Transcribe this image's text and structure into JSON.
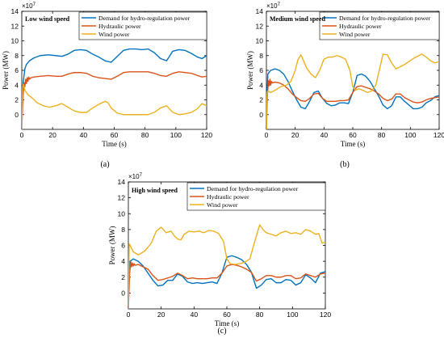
{
  "colors": {
    "demand": "#0072BD",
    "hydraulic": "#D95319",
    "wind": "#EDB120"
  },
  "chart_data": [
    {
      "type": "line",
      "panel_label": "(a)",
      "title": "Low wind speed",
      "xlabel": "Time (s)",
      "ylabel": "Power (MW)",
      "y_exponent": "×10",
      "y_exponent_power": "7",
      "xlim": [
        0,
        120
      ],
      "ylim": [
        -2,
        14
      ],
      "x_ticks": [
        "0",
        "20",
        "40",
        "60",
        "80",
        "100",
        "120"
      ],
      "y_ticks": [
        "0",
        "2",
        "4",
        "6",
        "8",
        "10",
        "12",
        "14"
      ],
      "legend_position": "top-right",
      "series": [
        {
          "name": "Demand for hydro-regulation power",
          "color_key": "demand",
          "x": [
            0,
            1,
            2,
            3,
            5,
            8,
            12,
            17,
            22,
            26,
            30,
            34,
            38,
            42,
            46,
            50,
            54,
            58,
            62,
            66,
            70,
            74,
            78,
            82,
            86,
            90,
            94,
            98,
            102,
            106,
            110,
            114,
            117,
            120
          ],
          "y": [
            0,
            4.5,
            6.2,
            6.8,
            7.3,
            7.7,
            8.0,
            8.1,
            8.0,
            7.9,
            8.2,
            8.7,
            8.8,
            8.7,
            8.2,
            7.8,
            7.3,
            7.1,
            7.9,
            8.7,
            8.9,
            8.9,
            8.8,
            8.9,
            8.4,
            7.6,
            7.3,
            8.6,
            8.8,
            8.7,
            8.3,
            7.8,
            7.6,
            8.0
          ]
        },
        {
          "name": "Hydraulic power",
          "color_key": "hydraulic",
          "x": [
            0,
            0.8,
            1.5,
            2,
            2.5,
            3,
            3.5,
            4,
            4.5,
            5,
            6,
            8,
            12,
            17,
            22,
            26,
            30,
            34,
            38,
            42,
            46,
            50,
            54,
            58,
            62,
            66,
            70,
            74,
            78,
            82,
            86,
            90,
            94,
            98,
            102,
            106,
            110,
            114,
            117,
            120
          ],
          "y": [
            -2,
            2.5,
            4.3,
            3.8,
            4.8,
            4.2,
            5.0,
            4.5,
            5.1,
            4.8,
            5.0,
            5.1,
            5.2,
            5.3,
            5.2,
            5.2,
            5.5,
            5.7,
            5.7,
            5.6,
            5.2,
            5.0,
            4.9,
            4.8,
            5.2,
            5.7,
            5.8,
            5.8,
            5.8,
            5.8,
            5.6,
            5.3,
            5.2,
            5.6,
            5.8,
            5.7,
            5.6,
            5.3,
            5.1,
            5.2
          ]
        },
        {
          "name": "Wind power",
          "color_key": "wind",
          "x": [
            0,
            0.5,
            1,
            2,
            4,
            7,
            10,
            14,
            18,
            22,
            26,
            30,
            34,
            38,
            42,
            46,
            50,
            54,
            56,
            58,
            62,
            66,
            70,
            74,
            78,
            82,
            86,
            90,
            94,
            98,
            102,
            106,
            110,
            114,
            117,
            120
          ],
          "y": [
            -2,
            3.8,
            4.1,
            3.3,
            2.7,
            2.2,
            1.6,
            1.2,
            1.0,
            1.2,
            1.5,
            1.0,
            0.5,
            0.3,
            0.3,
            0.9,
            1.4,
            1.8,
            1.6,
            0.9,
            0.2,
            0.0,
            0.0,
            0.0,
            0.0,
            0.0,
            0.3,
            0.9,
            1.2,
            0.3,
            0.0,
            0.1,
            0.3,
            0.8,
            1.5,
            1.2
          ]
        }
      ]
    },
    {
      "type": "line",
      "panel_label": "(b)",
      "title": "Medium wind speed",
      "xlabel": "Time (s)",
      "ylabel": "Power (MW)",
      "y_exponent": "×10",
      "y_exponent_power": "7",
      "xlim": [
        0,
        120
      ],
      "ylim": [
        -2,
        14
      ],
      "x_ticks": [
        "0",
        "20",
        "40",
        "60",
        "80",
        "100",
        "120"
      ],
      "y_ticks": [
        "0",
        "2",
        "4",
        "6",
        "8",
        "10",
        "12",
        "14"
      ],
      "legend_position": "top-right",
      "series": [
        {
          "name": "Demand for hydro-regulation power",
          "color_key": "demand",
          "x": [
            0,
            1,
            3,
            6,
            9,
            12,
            15,
            18,
            21,
            24,
            27,
            30,
            33,
            36,
            39,
            42,
            45,
            48,
            51,
            54,
            57,
            60,
            63,
            66,
            69,
            72,
            75,
            78,
            81,
            84,
            87,
            90,
            93,
            96,
            99,
            102,
            105,
            108,
            111,
            114,
            117,
            120
          ],
          "y": [
            0,
            5.5,
            6.0,
            6.2,
            6.0,
            5.5,
            4.5,
            3.2,
            2.0,
            1.0,
            0.8,
            1.8,
            3.0,
            3.2,
            2.2,
            1.5,
            1.2,
            1.3,
            1.6,
            1.6,
            1.5,
            3.0,
            5.3,
            5.5,
            5.2,
            4.5,
            3.5,
            2.5,
            1.3,
            0.8,
            1.2,
            2.4,
            2.4,
            1.8,
            1.3,
            0.8,
            0.8,
            1.0,
            1.6,
            1.9,
            2.4,
            2.6
          ]
        },
        {
          "name": "Hydraulic power",
          "color_key": "hydraulic",
          "x": [
            0,
            0.8,
            1.5,
            2,
            2.5,
            3,
            3.5,
            4,
            6,
            9,
            12,
            15,
            18,
            21,
            24,
            27,
            30,
            33,
            36,
            39,
            42,
            45,
            48,
            51,
            54,
            57,
            60,
            63,
            66,
            69,
            72,
            75,
            78,
            81,
            84,
            87,
            90,
            93,
            96,
            99,
            102,
            105,
            108,
            111,
            114,
            117,
            120
          ],
          "y": [
            -2,
            3.0,
            4.6,
            3.9,
            4.8,
            4.0,
            4.5,
            4.3,
            4.4,
            4.3,
            4.0,
            3.5,
            2.8,
            2.3,
            1.9,
            1.8,
            2.2,
            2.8,
            2.9,
            2.2,
            1.8,
            1.8,
            1.8,
            1.9,
            1.9,
            2.0,
            3.0,
            3.8,
            3.9,
            3.7,
            3.5,
            3.2,
            2.8,
            2.2,
            1.9,
            2.1,
            2.8,
            2.8,
            2.3,
            2.0,
            1.7,
            1.6,
            1.7,
            2.0,
            2.2,
            2.3,
            2.4
          ]
        },
        {
          "name": "Wind power",
          "color_key": "wind",
          "x": [
            0,
            0.5,
            1,
            3,
            6,
            10,
            14,
            17,
            20,
            22,
            24,
            26,
            28,
            31,
            34,
            37,
            40,
            43,
            46,
            49,
            52,
            55,
            58,
            60,
            62,
            64,
            67,
            70,
            73,
            76,
            79,
            81,
            84,
            87,
            90,
            93,
            96,
            99,
            102,
            105,
            108,
            111,
            114,
            117,
            120
          ],
          "y": [
            -2,
            3.0,
            3.2,
            3.0,
            3.3,
            3.8,
            4.0,
            4.5,
            6.0,
            7.5,
            8.1,
            7.2,
            6.3,
            5.5,
            5.0,
            6.0,
            7.5,
            7.8,
            7.8,
            8.0,
            7.8,
            7.5,
            6.0,
            3.8,
            3.3,
            3.5,
            3.3,
            3.0,
            3.2,
            4.0,
            6.5,
            8.2,
            8.1,
            7.0,
            6.2,
            6.5,
            6.8,
            7.2,
            7.6,
            7.9,
            8.2,
            7.8,
            7.3,
            7.0,
            7.2
          ]
        }
      ]
    },
    {
      "type": "line",
      "panel_label": "(c)",
      "title": "High wind speed",
      "xlabel": "Time (s)",
      "ylabel": "Power (MW)",
      "y_exponent": "×10",
      "y_exponent_power": "7",
      "xlim": [
        0,
        120
      ],
      "ylim": [
        -2,
        14
      ],
      "x_ticks": [
        "0",
        "20",
        "40",
        "60",
        "80",
        "100",
        "120"
      ],
      "y_ticks": [
        "0",
        "2",
        "4",
        "6",
        "8",
        "10",
        "12",
        "14"
      ],
      "legend_position": "top-right",
      "series": [
        {
          "name": "Demand for hydro-regulation power",
          "color_key": "demand",
          "x": [
            0,
            1,
            3,
            6,
            9,
            12,
            15,
            18,
            21,
            24,
            27,
            30,
            33,
            36,
            39,
            42,
            45,
            48,
            51,
            54,
            57,
            60,
            63,
            66,
            69,
            72,
            75,
            78,
            81,
            84,
            87,
            90,
            93,
            96,
            99,
            102,
            105,
            108,
            111,
            114,
            117,
            120
          ],
          "y": [
            0,
            4.0,
            4.3,
            4.0,
            3.4,
            2.5,
            1.6,
            0.9,
            1.0,
            1.6,
            1.6,
            2.4,
            2.1,
            1.4,
            1.2,
            1.3,
            1.2,
            1.3,
            1.4,
            1.2,
            2.5,
            4.5,
            4.7,
            4.5,
            4.2,
            3.6,
            2.6,
            0.6,
            1.0,
            1.7,
            1.8,
            1.3,
            1.3,
            1.7,
            1.6,
            1.0,
            1.3,
            2.3,
            1.9,
            1.3,
            2.5,
            2.7
          ]
        },
        {
          "name": "Hydraulic power",
          "color_key": "hydraulic",
          "x": [
            0,
            0.8,
            1.5,
            2,
            2.5,
            3,
            3.5,
            4,
            6,
            9,
            12,
            15,
            18,
            21,
            24,
            27,
            30,
            33,
            36,
            39,
            42,
            45,
            48,
            51,
            54,
            57,
            60,
            63,
            66,
            69,
            72,
            75,
            78,
            81,
            84,
            87,
            90,
            93,
            96,
            99,
            102,
            105,
            108,
            111,
            114,
            117,
            120
          ],
          "y": [
            -2,
            2.5,
            3.9,
            3.3,
            3.8,
            3.4,
            3.7,
            3.5,
            3.6,
            3.3,
            3.0,
            2.2,
            1.6,
            1.7,
            1.9,
            2.1,
            2.5,
            2.2,
            1.8,
            1.9,
            1.8,
            1.8,
            1.8,
            1.9,
            1.9,
            2.5,
            3.4,
            3.6,
            3.5,
            3.3,
            3.0,
            2.6,
            1.5,
            1.8,
            2.2,
            2.2,
            2.0,
            2.0,
            2.2,
            2.2,
            1.8,
            1.9,
            2.4,
            2.2,
            2.0,
            2.4,
            2.5
          ]
        },
        {
          "name": "Wind power",
          "color_key": "wind",
          "x": [
            0,
            0.5,
            1,
            3,
            6,
            10,
            14,
            17,
            20,
            23,
            26,
            28,
            30,
            32,
            34,
            37,
            40,
            43,
            46,
            49,
            52,
            55,
            58,
            60,
            62,
            65,
            68,
            71,
            74,
            77,
            80,
            82,
            84,
            87,
            90,
            93,
            96,
            99,
            102,
            105,
            108,
            111,
            114,
            116,
            118,
            120
          ],
          "y": [
            -2,
            6.2,
            6.0,
            5.2,
            4.8,
            5.3,
            6.3,
            7.8,
            8.3,
            7.6,
            7.8,
            7.2,
            6.8,
            6.7,
            7.4,
            7.8,
            7.7,
            7.8,
            7.6,
            7.9,
            7.8,
            7.5,
            6.5,
            4.3,
            3.7,
            3.6,
            3.7,
            3.9,
            4.3,
            6.5,
            8.6,
            8.0,
            7.6,
            7.4,
            7.2,
            7.6,
            7.8,
            7.5,
            7.6,
            7.4,
            8.0,
            7.8,
            7.4,
            7.5,
            6.3,
            6.4
          ]
        }
      ]
    }
  ]
}
